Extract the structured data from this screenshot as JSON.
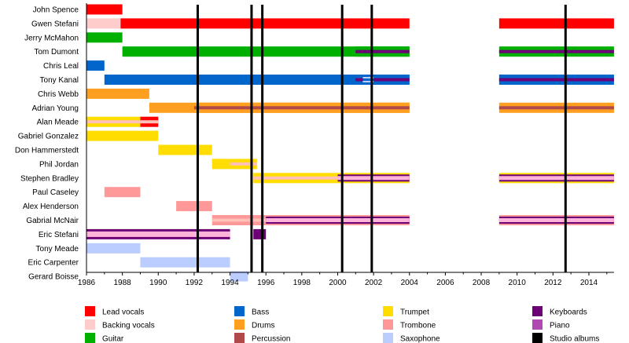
{
  "chart_data": {
    "type": "timeline",
    "title": "",
    "xlabel": "",
    "ylabel": "",
    "xlim": [
      1986,
      2015.4
    ],
    "x_ticks_major": [
      1986,
      1988,
      1990,
      1992,
      1994,
      1996,
      1998,
      2000,
      2002,
      2004,
      2006,
      2008,
      2010,
      2012,
      2014
    ],
    "x_ticks_minor": [
      1987,
      1989,
      1991,
      1993,
      1995,
      1997,
      1999,
      2001,
      2003,
      2005,
      2007,
      2009,
      2011,
      2013,
      2015
    ],
    "grid": false,
    "legend_position": "bottom",
    "colors": {
      "lead_vocals": "#ff0000",
      "backing_vocals": "#ffcccc",
      "guitar": "#00b000",
      "bass": "#0066cc",
      "drums": "#ff9f1f",
      "percussion": "#b04a4a",
      "trumpet": "#ffdd00",
      "trombone": "#ff9999",
      "saxophone": "#bbccff",
      "keyboards": "#6e0077",
      "piano": "#b04ab0",
      "studio_albums": "#000000"
    },
    "members": [
      {
        "name": "John Spence",
        "segments": [
          {
            "start": 1986,
            "end": 1988,
            "main": "lead_vocals"
          }
        ]
      },
      {
        "name": "Gwen Stefani",
        "segments": [
          {
            "start": 1986,
            "end": 1987.9,
            "main": "backing_vocals"
          },
          {
            "start": 1987.9,
            "end": 2004,
            "main": "lead_vocals"
          },
          {
            "start": 2009,
            "end": 2015.4,
            "main": "lead_vocals"
          }
        ]
      },
      {
        "name": "Jerry McMahon",
        "segments": [
          {
            "start": 1986,
            "end": 1988,
            "main": "guitar"
          }
        ]
      },
      {
        "name": "Tom Dumont",
        "segments": [
          {
            "start": 1988,
            "end": 2004,
            "main": "guitar"
          },
          {
            "start": 2001,
            "end": 2004,
            "main": "guitar",
            "stripe": "keyboards"
          },
          {
            "start": 2009,
            "end": 2015.4,
            "main": "guitar",
            "stripe": "keyboards"
          }
        ]
      },
      {
        "name": "Chris Leal",
        "segments": [
          {
            "start": 1986,
            "end": 1987,
            "main": "bass"
          }
        ]
      },
      {
        "name": "Tony Kanal",
        "segments": [
          {
            "start": 1987,
            "end": 2004,
            "main": "bass"
          },
          {
            "start": 2001,
            "end": 2004,
            "main": "bass",
            "stripe": "keyboards"
          },
          {
            "start": 2001.4,
            "end": 2002,
            "main": "bass",
            "stripe": "saxophone_double"
          },
          {
            "start": 2009,
            "end": 2015.4,
            "main": "bass",
            "stripe": "keyboards"
          }
        ]
      },
      {
        "name": "Chris Webb",
        "segments": [
          {
            "start": 1986,
            "end": 1989.5,
            "main": "drums"
          }
        ]
      },
      {
        "name": "Adrian Young",
        "segments": [
          {
            "start": 1989.5,
            "end": 2004,
            "main": "drums"
          },
          {
            "start": 1992,
            "end": 2004,
            "main": "drums",
            "stripe": "percussion"
          },
          {
            "start": 2009,
            "end": 2015.4,
            "main": "drums",
            "stripe": "percussion"
          }
        ]
      },
      {
        "name": "Alan Meade",
        "segments": [
          {
            "start": 1986,
            "end": 1989,
            "main": "trumpet",
            "stripe": "backing_vocals"
          },
          {
            "start": 1989,
            "end": 1990,
            "main": "lead_vocals",
            "stripe": "backing_vocals"
          }
        ]
      },
      {
        "name": "Gabriel Gonzalez",
        "segments": [
          {
            "start": 1986,
            "end": 1990,
            "main": "trumpet"
          }
        ]
      },
      {
        "name": "Don Hammerstedt",
        "segments": [
          {
            "start": 1990,
            "end": 1993,
            "main": "trumpet"
          }
        ]
      },
      {
        "name": "Phil Jordan",
        "segments": [
          {
            "start": 1993,
            "end": 1994,
            "main": "trumpet"
          },
          {
            "start": 1994,
            "end": 1995.5,
            "main": "trumpet",
            "stripe": "backing_vocals"
          }
        ]
      },
      {
        "name": "Stephen Bradley",
        "segments": [
          {
            "start": 1995.3,
            "end": 2000,
            "main": "trumpet",
            "stripe": "backing_vocals"
          },
          {
            "start": 2000,
            "end": 2004,
            "main": "trumpet",
            "stripe": "keys_backing"
          },
          {
            "start": 2009,
            "end": 2015.4,
            "main": "trumpet",
            "stripe": "keys_backing"
          }
        ]
      },
      {
        "name": "Paul Caseley",
        "segments": [
          {
            "start": 1987,
            "end": 1989,
            "main": "trombone"
          }
        ]
      },
      {
        "name": "Alex Henderson",
        "segments": [
          {
            "start": 1991,
            "end": 1993,
            "main": "trombone"
          }
        ]
      },
      {
        "name": "Gabrial McNair",
        "segments": [
          {
            "start": 1993,
            "end": 1996,
            "main": "trombone",
            "stripe": "backing_vocals"
          },
          {
            "start": 1996,
            "end": 2004,
            "main": "trombone",
            "stripe": "keys_backing"
          },
          {
            "start": 2009,
            "end": 2015.4,
            "main": "trombone",
            "stripe": "keys_backing"
          }
        ]
      },
      {
        "name": "Eric Stefani",
        "segments": [
          {
            "start": 1986,
            "end": 1994,
            "main": "keyboards",
            "stripe": "backing_vocals"
          },
          {
            "start": 1995.3,
            "end": 1996,
            "main": "keyboards"
          }
        ]
      },
      {
        "name": "Tony Meade",
        "segments": [
          {
            "start": 1986,
            "end": 1989,
            "main": "saxophone"
          }
        ]
      },
      {
        "name": "Eric Carpenter",
        "segments": [
          {
            "start": 1989,
            "end": 1994,
            "main": "saxophone"
          }
        ]
      },
      {
        "name": "Gerard Boisse",
        "segments": [
          {
            "start": 1994,
            "end": 1995,
            "main": "saxophone"
          }
        ]
      }
    ],
    "studio_albums": [
      1992.2,
      1995.2,
      1995.8,
      2000.25,
      2001.9,
      2012.7
    ],
    "legend": [
      {
        "label": "Lead vocals",
        "key": "lead_vocals"
      },
      {
        "label": "Backing vocals",
        "key": "backing_vocals"
      },
      {
        "label": "Guitar",
        "key": "guitar"
      },
      {
        "label": "Bass",
        "key": "bass"
      },
      {
        "label": "Drums",
        "key": "drums"
      },
      {
        "label": "Percussion",
        "key": "percussion"
      },
      {
        "label": "Trumpet",
        "key": "trumpet"
      },
      {
        "label": "Trombone",
        "key": "trombone"
      },
      {
        "label": "Saxophone",
        "key": "saxophone"
      },
      {
        "label": "Keyboards",
        "key": "keyboards"
      },
      {
        "label": "Piano",
        "key": "piano"
      },
      {
        "label": "Studio albums",
        "key": "studio_albums"
      }
    ]
  }
}
